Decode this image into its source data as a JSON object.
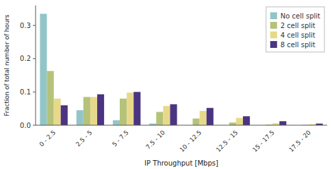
{
  "chart_data": {
    "type": "bar",
    "categories": [
      "0 - 2.5",
      "2.5 - 5",
      "5 - 7.5",
      "7.5 - 10",
      "10 - 12.5",
      "12.5 - 15",
      "15 - 17.5",
      "17.5 - 20"
    ],
    "series": [
      {
        "name": "No cell split",
        "color": "#92c5c8",
        "values": [
          0.335,
          0.045,
          0.015,
          0.005,
          0.0,
          0.0,
          0.0,
          0.0
        ]
      },
      {
        "name": "2 cell split",
        "color": "#b5c27a",
        "values": [
          0.163,
          0.085,
          0.08,
          0.04,
          0.02,
          0.008,
          0.002,
          0.001
        ]
      },
      {
        "name": "4 cell split",
        "color": "#e8d98a",
        "values": [
          0.08,
          0.085,
          0.098,
          0.058,
          0.043,
          0.022,
          0.006,
          0.003
        ]
      },
      {
        "name": "8 cell split",
        "color": "#4b3582",
        "values": [
          0.06,
          0.093,
          0.1,
          0.063,
          0.052,
          0.027,
          0.012,
          0.005
        ]
      }
    ],
    "xlabel": "IP Throughput [Mbps]",
    "ylabel": "Fraction of total number of hours",
    "ylim": [
      0,
      0.36
    ],
    "yticks": [
      {
        "value": 0,
        "label": "0.0"
      },
      0.1,
      0.2,
      0.3
    ],
    "grid": false,
    "legend": "upper right"
  }
}
